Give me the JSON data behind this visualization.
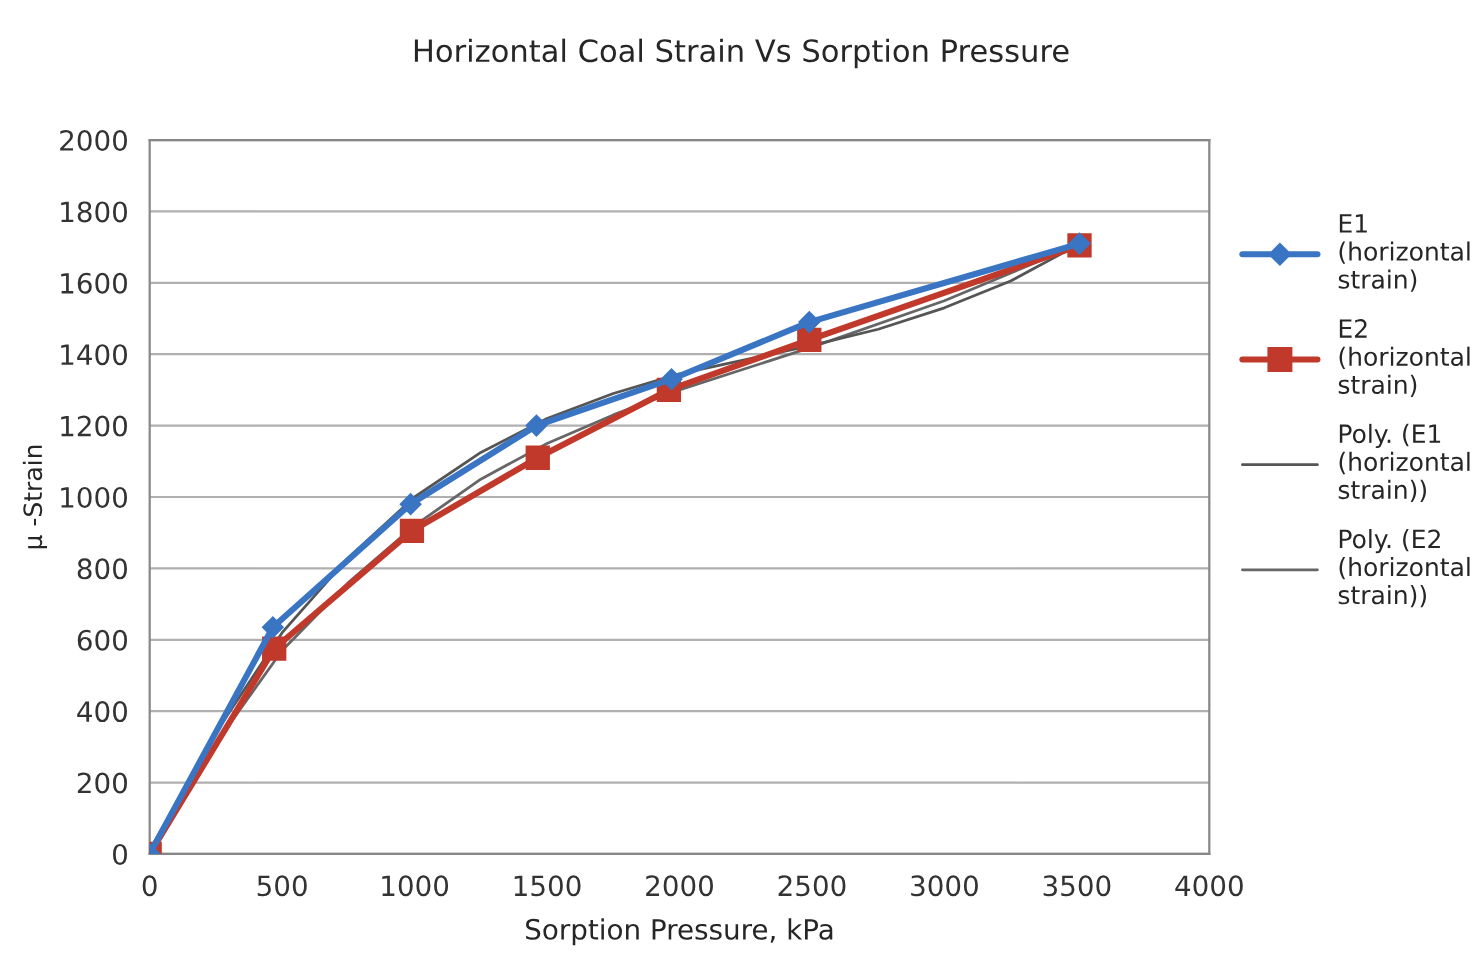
{
  "chart_data": {
    "type": "line",
    "title": "Horizontal Coal Strain Vs Sorption Pressure",
    "xlabel": "Sorption Pressure, kPa",
    "ylabel": "μ -Strain",
    "xlim": [
      0,
      4000
    ],
    "xticks": [
      0,
      500,
      1000,
      1500,
      2000,
      2500,
      3000,
      3500,
      4000
    ],
    "ylim": [
      0,
      2000
    ],
    "yticks": [
      0,
      200,
      400,
      600,
      800,
      1000,
      1200,
      1400,
      1600,
      1800,
      2000
    ],
    "grid": "y",
    "legend": "right",
    "series": [
      {
        "name": "E1 (horizontal strain)",
        "color": "#3a75c4",
        "marker": "diamond",
        "x": [
          0,
          465,
          985,
          1460,
          1970,
          2490,
          3510
        ],
        "values": [
          0,
          635,
          980,
          1200,
          1330,
          1490,
          1710
        ]
      },
      {
        "name": "E2 (horizontal strain)",
        "color": "#c0392b",
        "marker": "square",
        "x": [
          0,
          470,
          990,
          1465,
          1960,
          2490,
          3510
        ],
        "values": [
          0,
          575,
          905,
          1110,
          1300,
          1440,
          1705
        ]
      },
      {
        "name": "Poly. (E1 (horizontal strain))",
        "color": "#555555",
        "marker": "none",
        "x": [
          0,
          250,
          500,
          750,
          1000,
          1250,
          1500,
          1750,
          2000,
          2250,
          2500,
          2750,
          3000,
          3250,
          3500
        ],
        "values": [
          10,
          340,
          620,
          830,
          1000,
          1125,
          1220,
          1290,
          1345,
          1385,
          1425,
          1470,
          1530,
          1605,
          1705
        ]
      },
      {
        "name": "Poly. (E2 (horizontal strain))",
        "color": "#666666",
        "marker": "none",
        "x": [
          0,
          250,
          500,
          750,
          1000,
          1250,
          1500,
          1750,
          2000,
          2250,
          2500,
          3000,
          3500
        ],
        "values": [
          0,
          310,
          570,
          760,
          920,
          1050,
          1150,
          1230,
          1300,
          1360,
          1420,
          1550,
          1705
        ]
      }
    ]
  }
}
